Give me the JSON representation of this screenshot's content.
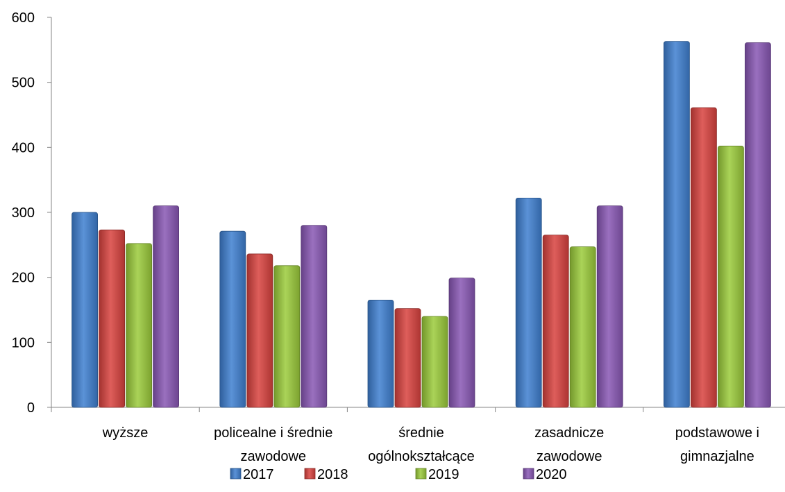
{
  "chart_data": {
    "type": "bar",
    "title": "",
    "xlabel": "",
    "ylabel": "",
    "ylim": [
      0,
      600
    ],
    "yticks": [
      "0",
      "100",
      "200",
      "300",
      "400",
      "500",
      "600"
    ],
    "categories": [
      [
        "wyższe"
      ],
      [
        "policealne i średnie",
        "zawodowe"
      ],
      [
        "średnie",
        "ogólnokształcące"
      ],
      [
        "zasadnicze",
        "zawodowe"
      ],
      [
        "podstawowe  i",
        "gimnazjalne"
      ]
    ],
    "series": [
      {
        "name": "2017",
        "color": "#3E7FD0",
        "values": [
          300,
          271,
          165,
          322,
          563
        ]
      },
      {
        "name": "2018",
        "color": "#D8423E",
        "values": [
          273,
          236,
          152,
          265,
          461
        ]
      },
      {
        "name": "2019",
        "color": "#9BCB3B",
        "values": [
          252,
          218,
          140,
          247,
          402
        ]
      },
      {
        "name": "2020",
        "color": "#8857B4",
        "values": [
          310,
          280,
          199,
          310,
          561
        ]
      }
    ],
    "grid": false,
    "legend": "bottom"
  }
}
